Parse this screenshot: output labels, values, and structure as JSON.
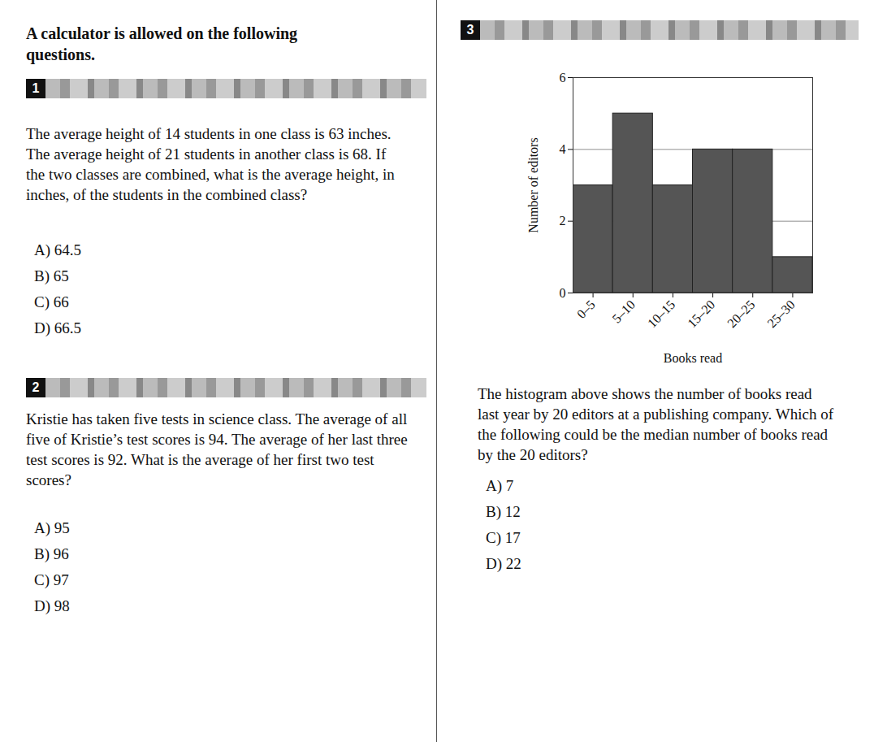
{
  "header": "A calculator is allowed on the following questions.",
  "questions": [
    {
      "number": "1",
      "text": "The average height of 14 students in one class is 63 inches. The average height of 21 students in another class is 68. If the two classes are combined, what is the average height, in inches, of the students in the combined class?",
      "choices": [
        "A) 64.5",
        "B) 65",
        "C) 66",
        "D) 66.5"
      ]
    },
    {
      "number": "2",
      "text": "Kristie has taken five tests in science class. The average of all five of Kristie’s test scores is 94. The average of her last three test scores is 92. What is the average of her first two test scores?",
      "choices": [
        "A) 95",
        "B) 96",
        "C) 97",
        "D) 98"
      ]
    },
    {
      "number": "3",
      "text": "The histogram above shows the number of books read last year by 20 editors at a publishing company. Which of the following could be the median number of books read by the 20 editors?",
      "choices": [
        "A) 7",
        "B) 12",
        "C) 17",
        "D) 22"
      ]
    }
  ],
  "chart_data": {
    "type": "histogram",
    "x_label": "Books read",
    "y_label": "Number of editors",
    "bins": [
      0,
      5,
      10,
      15,
      20,
      25,
      30
    ],
    "counts": [
      3,
      5,
      3,
      4,
      4,
      1
    ],
    "color": "#555555",
    "xlim": [
      0,
      30
    ],
    "xticks": [
      {
        "value": 2.5,
        "label": "0–5"
      },
      {
        "value": 7.5,
        "label": "5–10"
      },
      {
        "value": 12.5,
        "label": "10–15"
      },
      {
        "value": 17.5,
        "label": "15–20"
      },
      {
        "value": 22.5,
        "label": "20–25"
      },
      {
        "value": 27.5,
        "label": "25–30"
      }
    ],
    "ylim": [
      0,
      6
    ],
    "yticks": [
      0,
      2,
      4,
      6
    ],
    "grid": true
  }
}
